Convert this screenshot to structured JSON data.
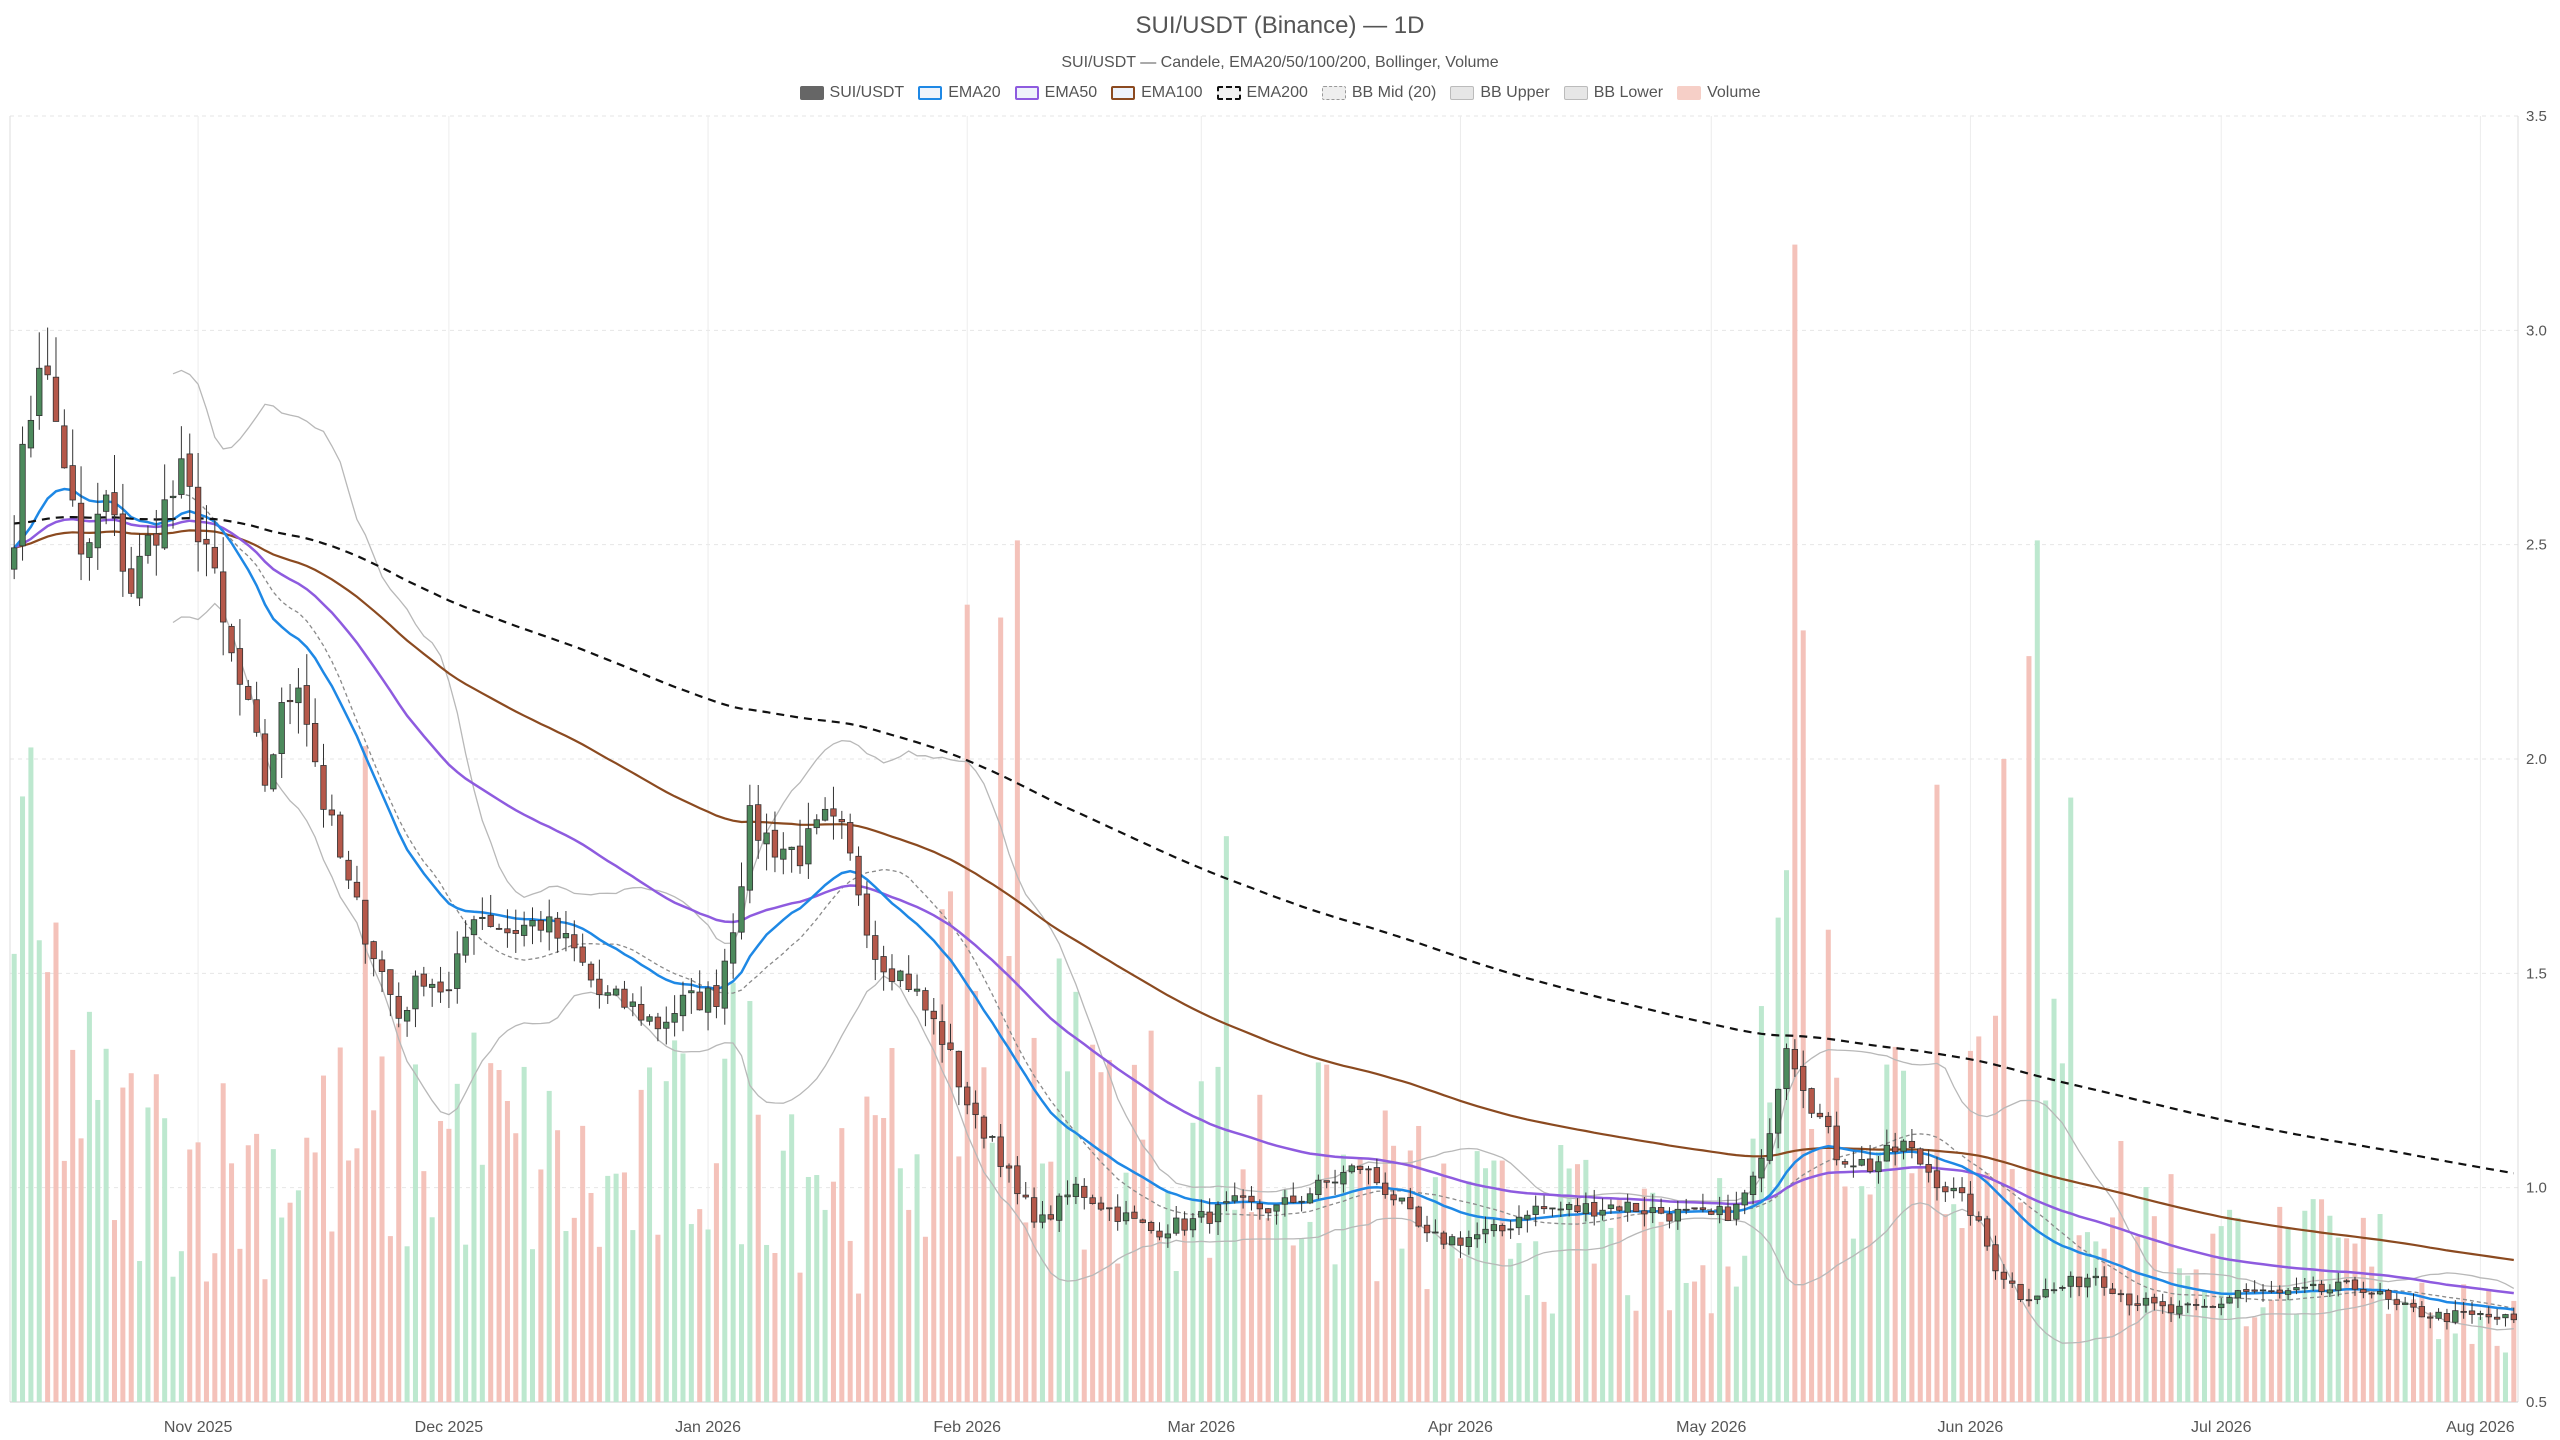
{
  "chart_data": {
    "type": "candlestick",
    "title": "SUI/USDT (Binance) — 1D",
    "subtitle": "SUI/USDT — Candele, EMA20/50/100/200, Bollinger, Volume",
    "legend": [
      {
        "label": "SUI/USDT",
        "color": "#666666",
        "style": "solid"
      },
      {
        "label": "EMA20",
        "color": "#1e88e5",
        "style": "line"
      },
      {
        "label": "EMA50",
        "color": "#8e5bdf",
        "style": "line"
      },
      {
        "label": "EMA100",
        "color": "#8b4a20",
        "style": "line"
      },
      {
        "label": "EMA200",
        "color": "#111111",
        "style": "dashed"
      },
      {
        "label": "BB Mid (20)",
        "color": "#999999",
        "style": "dotted"
      },
      {
        "label": "BB Upper",
        "color": "#bbbbbb",
        "style": "band"
      },
      {
        "label": "BB Lower",
        "color": "#bbbbbb",
        "style": "band"
      },
      {
        "label": "Volume",
        "color": "#f2a899",
        "style": "bar"
      }
    ],
    "x_axis": {
      "start": "2025-10-10",
      "end": "2026-08-05",
      "ticks": [
        {
          "label": "Nov 2025",
          "date": "2025-11-01"
        },
        {
          "label": "Dec 2025",
          "date": "2025-12-01"
        },
        {
          "label": "Jan 2026",
          "date": "2026-01-01"
        },
        {
          "label": "Feb 2026",
          "date": "2026-02-01"
        },
        {
          "label": "Mar 2026",
          "date": "2026-03-01"
        },
        {
          "label": "Apr 2026",
          "date": "2026-04-01"
        },
        {
          "label": "May 2026",
          "date": "2026-05-01"
        },
        {
          "label": "Jun 2026",
          "date": "2026-06-01"
        },
        {
          "label": "Jul 2026",
          "date": "2026-07-01"
        },
        {
          "label": "Aug 2026",
          "date": "2026-08-01"
        }
      ]
    },
    "y_axis": {
      "position": "right",
      "min": 0.5,
      "max": 3.5,
      "ticks": [
        "0.5",
        "1.0",
        "1.5",
        "2.0",
        "2.5",
        "3.0",
        "3.5"
      ]
    },
    "colors": {
      "up": "#4c8a5c",
      "down": "#b5584a",
      "vol_up": "#bde8cf",
      "vol_down": "#f4c2ba"
    },
    "close_anchors": [
      [
        "2025-10-10",
        2.55
      ],
      [
        "2025-10-13",
        2.95
      ],
      [
        "2025-10-16",
        2.7
      ],
      [
        "2025-10-18",
        2.45
      ],
      [
        "2025-10-21",
        2.6
      ],
      [
        "2025-10-24",
        2.4
      ],
      [
        "2025-10-27",
        2.55
      ],
      [
        "2025-10-30",
        2.65
      ],
      [
        "2025-11-02",
        2.5
      ],
      [
        "2025-11-04",
        2.3
      ],
      [
        "2025-11-07",
        2.1
      ],
      [
        "2025-11-09",
        1.95
      ],
      [
        "2025-11-11",
        2.1
      ],
      [
        "2025-11-13",
        2.2
      ],
      [
        "2025-11-16",
        1.9
      ],
      [
        "2025-11-19",
        1.7
      ],
      [
        "2025-11-22",
        1.55
      ],
      [
        "2025-11-25",
        1.4
      ],
      [
        "2025-11-28",
        1.5
      ],
      [
        "2025-12-01",
        1.45
      ],
      [
        "2025-12-04",
        1.65
      ],
      [
        "2025-12-08",
        1.6
      ],
      [
        "2025-12-12",
        1.62
      ],
      [
        "2025-12-16",
        1.55
      ],
      [
        "2025-12-19",
        1.45
      ],
      [
        "2025-12-23",
        1.42
      ],
      [
        "2025-12-26",
        1.38
      ],
      [
        "2025-12-29",
        1.43
      ],
      [
        "2026-01-02",
        1.45
      ],
      [
        "2026-01-04",
        1.62
      ],
      [
        "2026-01-06",
        1.85
      ],
      [
        "2026-01-09",
        1.8
      ],
      [
        "2026-01-12",
        1.78
      ],
      [
        "2026-01-15",
        1.85
      ],
      [
        "2026-01-17",
        1.82
      ],
      [
        "2026-01-19",
        1.7
      ],
      [
        "2026-01-21",
        1.55
      ],
      [
        "2026-01-25",
        1.48
      ],
      [
        "2026-01-29",
        1.35
      ],
      [
        "2026-02-02",
        1.15
      ],
      [
        "2026-02-04",
        1.12
      ],
      [
        "2026-02-07",
        0.98
      ],
      [
        "2026-02-10",
        0.92
      ],
      [
        "2026-02-14",
        1.0
      ],
      [
        "2026-02-18",
        0.95
      ],
      [
        "2026-02-23",
        0.9
      ],
      [
        "2026-02-28",
        0.92
      ],
      [
        "2026-03-05",
        0.96
      ],
      [
        "2026-03-10",
        0.95
      ],
      [
        "2026-03-15",
        1.0
      ],
      [
        "2026-03-20",
        1.05
      ],
      [
        "2026-03-24",
        0.98
      ],
      [
        "2026-03-28",
        0.88
      ],
      [
        "2026-04-01",
        0.88
      ],
      [
        "2026-04-06",
        0.9
      ],
      [
        "2026-04-09",
        0.95
      ],
      [
        "2026-04-15",
        0.95
      ],
      [
        "2026-04-20",
        0.96
      ],
      [
        "2026-04-26",
        0.94
      ],
      [
        "2026-05-01",
        0.93
      ],
      [
        "2026-05-04",
        0.95
      ],
      [
        "2026-05-07",
        1.05
      ],
      [
        "2026-05-10",
        1.35
      ],
      [
        "2026-05-13",
        1.2
      ],
      [
        "2026-05-16",
        1.08
      ],
      [
        "2026-05-20",
        1.05
      ],
      [
        "2026-05-24",
        1.1
      ],
      [
        "2026-05-28",
        1.02
      ],
      [
        "2026-06-01",
        0.95
      ],
      [
        "2026-06-04",
        0.82
      ],
      [
        "2026-06-07",
        0.75
      ],
      [
        "2026-06-11",
        0.76
      ],
      [
        "2026-06-16",
        0.8
      ],
      [
        "2026-06-20",
        0.74
      ],
      [
        "2026-06-25",
        0.71
      ],
      [
        "2026-06-30",
        0.72
      ],
      [
        "2026-07-03",
        0.76
      ],
      [
        "2026-07-08",
        0.75
      ],
      [
        "2026-07-13",
        0.76
      ],
      [
        "2026-07-18",
        0.77
      ],
      [
        "2026-07-22",
        0.72
      ],
      [
        "2026-07-27",
        0.7
      ],
      [
        "2026-08-01",
        0.7
      ],
      [
        "2026-08-05",
        0.69
      ]
    ],
    "volume_anchors": [
      [
        "2025-10-10",
        0.42
      ],
      [
        "2025-10-20",
        0.22
      ],
      [
        "2025-11-05",
        0.2
      ],
      [
        "2025-11-20",
        0.22
      ],
      [
        "2025-12-05",
        0.23
      ],
      [
        "2025-12-20",
        0.17
      ],
      [
        "2026-01-05",
        0.26
      ],
      [
        "2026-01-20",
        0.18
      ],
      [
        "2026-02-02",
        0.33
      ],
      [
        "2026-02-15",
        0.25
      ],
      [
        "2026-03-01",
        0.21
      ],
      [
        "2026-03-15",
        0.2
      ],
      [
        "2026-04-01",
        0.15
      ],
      [
        "2026-04-15",
        0.15
      ],
      [
        "2026-05-01",
        0.1
      ],
      [
        "2026-05-10",
        0.38
      ],
      [
        "2026-05-20",
        0.24
      ],
      [
        "2026-06-05",
        0.3
      ],
      [
        "2026-06-20",
        0.16
      ],
      [
        "2026-07-05",
        0.12
      ],
      [
        "2026-07-20",
        0.12
      ],
      [
        "2026-08-05",
        0.06
      ]
    ],
    "volume_spikes": [
      [
        "2026-05-11",
        0.9
      ],
      [
        "2026-05-12",
        0.6
      ],
      [
        "2026-02-07",
        0.67
      ],
      [
        "2026-06-09",
        0.67
      ],
      [
        "2026-02-01",
        0.62
      ],
      [
        "2026-02-05",
        0.61
      ],
      [
        "2026-06-08",
        0.58
      ],
      [
        "2026-05-28",
        0.48
      ],
      [
        "2026-06-13",
        0.47
      ],
      [
        "2026-03-04",
        0.44
      ],
      [
        "2025-11-21",
        0.51
      ],
      [
        "2026-06-05",
        0.5
      ]
    ]
  }
}
